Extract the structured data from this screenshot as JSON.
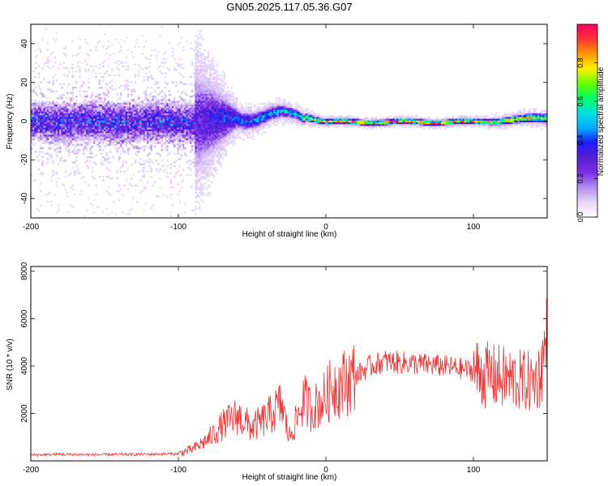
{
  "title": "GN05.2025.117.05.36.G07",
  "colors": {
    "snr_line": "#ee3333",
    "frame": "#000000",
    "colormap": [
      "#ffffff",
      "#e6d6f7",
      "#b48cf0",
      "#7a2ee6",
      "#5a1ecf",
      "#1a1aff",
      "#00aaff",
      "#00e0e0",
      "#00ff66",
      "#66ff00",
      "#ffee00",
      "#ff9900",
      "#ff3333",
      "#ff0066"
    ]
  },
  "chart_data": [
    {
      "type": "heatmap",
      "name": "spectrogram",
      "xlabel": "Height of straight line (km)",
      "ylabel": "Frequency (Hz)",
      "xlim": [
        -200,
        150
      ],
      "ylim": [
        -50,
        50
      ],
      "xticks": [
        -200,
        -100,
        0,
        100
      ],
      "yticks": [
        -40,
        -20,
        0,
        20,
        40
      ],
      "colorbar": {
        "label": "Normalized spectral amplitude",
        "range": [
          0.0,
          1.0
        ],
        "ticks": [
          0.0,
          0.2,
          0.4,
          0.6,
          0.8
        ]
      },
      "description_points": {
        "x_breakpoints_km": [
          -200,
          -90,
          -60,
          -20,
          0,
          100,
          150
        ],
        "ridge_frequency_hz": [
          0,
          0,
          2,
          4,
          0,
          0,
          2
        ],
        "spread_hz": [
          45,
          45,
          8,
          4,
          2,
          2,
          4
        ],
        "peak_amplitude": [
          0.25,
          0.3,
          0.45,
          0.6,
          0.9,
          0.9,
          0.75
        ]
      }
    },
    {
      "type": "line",
      "name": "snr",
      "xlabel": "Height of straight line (km)",
      "ylabel": "SNR (10 * v/v)",
      "xlim": [
        -200,
        150
      ],
      "ylim": [
        0,
        8200
      ],
      "xticks": [
        -200,
        -100,
        0,
        100
      ],
      "yticks": [
        2000,
        4000,
        6000,
        8000
      ],
      "series": [
        {
          "x": [
            -200,
            -180,
            -160,
            -140,
            -120,
            -100,
            -90,
            -80,
            -70,
            -60,
            -50,
            -40,
            -30,
            -25,
            -20,
            -15,
            -10,
            -5,
            0,
            5,
            10,
            20,
            30,
            40,
            60,
            80,
            100,
            110,
            120,
            130,
            140,
            145,
            150
          ],
          "y": [
            250,
            280,
            260,
            270,
            280,
            300,
            500,
            900,
            1500,
            1900,
            1400,
            1800,
            2400,
            1000,
            1700,
            2600,
            2200,
            2400,
            2700,
            3200,
            3200,
            3600,
            4000,
            4200,
            4100,
            4000,
            3800,
            3600,
            3500,
            3400,
            3300,
            3600,
            5200
          ]
        }
      ]
    }
  ]
}
